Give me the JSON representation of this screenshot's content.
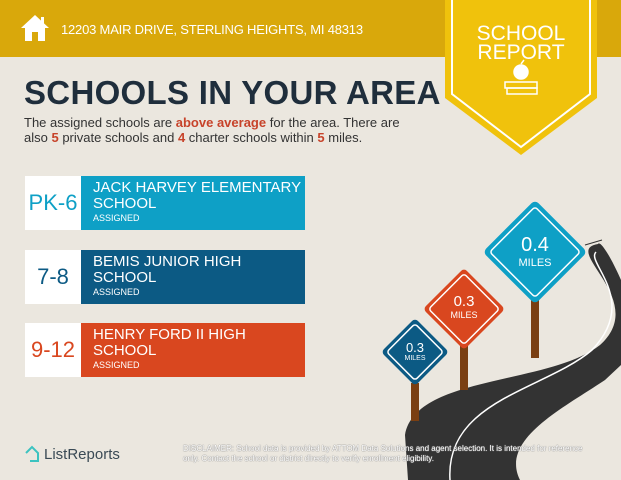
{
  "header": {
    "address": "12203 MAIR DRIVE, STERLING HEIGHTS, MI 48313",
    "icon": "home-icon"
  },
  "badge": {
    "line1": "SCHOOL",
    "line2": "REPORT",
    "icon": "apple-books-icon"
  },
  "title": "SCHOOLS IN YOUR AREA",
  "description": {
    "p1": "The assigned schools are ",
    "highlight": "above average",
    "p2": " for the area. There are also ",
    "private_count": "5",
    "p3": " private schools and ",
    "charter_count": "4",
    "p4": " charter schools within ",
    "radius": "5",
    "p5": " miles."
  },
  "schools": [
    {
      "grades": "PK-6",
      "name": "JACK HARVEY ELEMENTARY SCHOOL",
      "status": "ASSIGNED",
      "color": "#0ea0c6",
      "distance": "0.4",
      "unit": "MILES"
    },
    {
      "grades": "7-8",
      "name": "BEMIS JUNIOR HIGH SCHOOL",
      "status": "ASSIGNED",
      "color": "#0c5a84",
      "distance": "0.3",
      "unit": "MILES"
    },
    {
      "grades": "9-12",
      "name": "HENRY FORD II HIGH SCHOOL",
      "status": "ASSIGNED",
      "color": "#d9471f",
      "distance": "0.3",
      "unit": "MILES"
    }
  ],
  "footer": {
    "logo": "ListReports",
    "disclaimer_label": "DISCLAIMER:",
    "disclaimer": " School data is provided by ATTOM Data Solutions and agent selection. It is intended for reference only. Contact the school or district directly to verify enrollment eligibility."
  }
}
